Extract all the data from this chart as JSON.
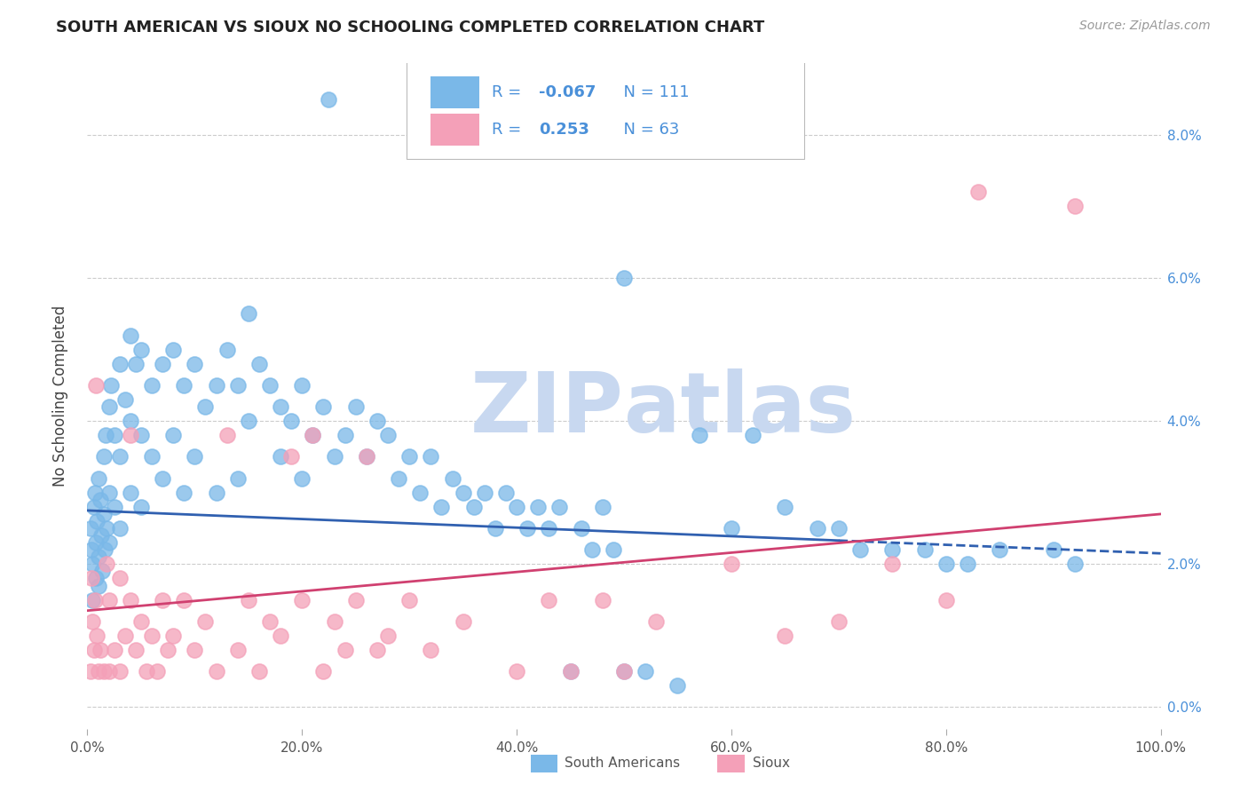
{
  "title": "SOUTH AMERICAN VS SIOUX NO SCHOOLING COMPLETED CORRELATION CHART",
  "source": "Source: ZipAtlas.com",
  "ylabel": "No Schooling Completed",
  "ytick_vals": [
    0.0,
    2.0,
    4.0,
    6.0,
    8.0
  ],
  "xtick_vals": [
    0.0,
    20.0,
    40.0,
    60.0,
    80.0,
    100.0
  ],
  "xlim": [
    0,
    100
  ],
  "ylim": [
    -0.3,
    9.0
  ],
  "blue_R": "-0.067",
  "blue_N": "111",
  "pink_R": "0.253",
  "pink_N": "63",
  "blue_marker_color": "#7ab8e8",
  "pink_marker_color": "#f4a0b8",
  "blue_line_color": "#3060b0",
  "pink_line_color": "#d04070",
  "watermark_zip": "ZIP",
  "watermark_atlas": "atlas",
  "watermark_color": "#c8d8f0",
  "legend_label_blue": "South Americans",
  "legend_label_pink": "Sioux",
  "legend_text_color": "#4a90d9",
  "blue_line_y0": 2.75,
  "blue_line_y1": 2.15,
  "blue_solid_end_x": 70,
  "pink_line_y0": 1.35,
  "pink_line_y1": 2.7,
  "blue_scatter": [
    [
      0.3,
      2.5
    ],
    [
      0.4,
      2.2
    ],
    [
      0.5,
      2.0
    ],
    [
      0.5,
      1.5
    ],
    [
      0.6,
      2.8
    ],
    [
      0.7,
      3.0
    ],
    [
      0.8,
      2.3
    ],
    [
      0.8,
      1.8
    ],
    [
      0.9,
      2.6
    ],
    [
      1.0,
      2.1
    ],
    [
      1.0,
      1.7
    ],
    [
      1.0,
      3.2
    ],
    [
      1.2,
      2.9
    ],
    [
      1.3,
      2.4
    ],
    [
      1.4,
      1.9
    ],
    [
      1.5,
      3.5
    ],
    [
      1.5,
      2.7
    ],
    [
      1.6,
      2.2
    ],
    [
      1.7,
      3.8
    ],
    [
      1.8,
      2.5
    ],
    [
      2.0,
      4.2
    ],
    [
      2.0,
      3.0
    ],
    [
      2.0,
      2.3
    ],
    [
      2.2,
      4.5
    ],
    [
      2.5,
      3.8
    ],
    [
      2.5,
      2.8
    ],
    [
      3.0,
      4.8
    ],
    [
      3.0,
      3.5
    ],
    [
      3.0,
      2.5
    ],
    [
      3.5,
      4.3
    ],
    [
      4.0,
      5.2
    ],
    [
      4.0,
      4.0
    ],
    [
      4.0,
      3.0
    ],
    [
      4.5,
      4.8
    ],
    [
      5.0,
      5.0
    ],
    [
      5.0,
      3.8
    ],
    [
      5.0,
      2.8
    ],
    [
      6.0,
      4.5
    ],
    [
      6.0,
      3.5
    ],
    [
      7.0,
      4.8
    ],
    [
      7.0,
      3.2
    ],
    [
      8.0,
      5.0
    ],
    [
      8.0,
      3.8
    ],
    [
      9.0,
      4.5
    ],
    [
      9.0,
      3.0
    ],
    [
      10.0,
      4.8
    ],
    [
      10.0,
      3.5
    ],
    [
      11.0,
      4.2
    ],
    [
      12.0,
      4.5
    ],
    [
      12.0,
      3.0
    ],
    [
      13.0,
      5.0
    ],
    [
      14.0,
      4.5
    ],
    [
      14.0,
      3.2
    ],
    [
      15.0,
      5.5
    ],
    [
      15.0,
      4.0
    ],
    [
      16.0,
      4.8
    ],
    [
      17.0,
      4.5
    ],
    [
      18.0,
      4.2
    ],
    [
      18.0,
      3.5
    ],
    [
      19.0,
      4.0
    ],
    [
      20.0,
      4.5
    ],
    [
      20.0,
      3.2
    ],
    [
      21.0,
      3.8
    ],
    [
      22.0,
      4.2
    ],
    [
      22.5,
      8.5
    ],
    [
      23.0,
      3.5
    ],
    [
      24.0,
      3.8
    ],
    [
      25.0,
      4.2
    ],
    [
      26.0,
      3.5
    ],
    [
      27.0,
      4.0
    ],
    [
      28.0,
      3.8
    ],
    [
      29.0,
      3.2
    ],
    [
      30.0,
      3.5
    ],
    [
      31.0,
      3.0
    ],
    [
      32.0,
      3.5
    ],
    [
      33.0,
      2.8
    ],
    [
      34.0,
      3.2
    ],
    [
      35.0,
      3.0
    ],
    [
      36.0,
      2.8
    ],
    [
      37.0,
      3.0
    ],
    [
      38.0,
      2.5
    ],
    [
      39.0,
      3.0
    ],
    [
      40.0,
      2.8
    ],
    [
      41.0,
      2.5
    ],
    [
      42.0,
      2.8
    ],
    [
      43.0,
      2.5
    ],
    [
      44.0,
      2.8
    ],
    [
      45.0,
      0.5
    ],
    [
      46.0,
      2.5
    ],
    [
      47.0,
      2.2
    ],
    [
      48.0,
      2.8
    ],
    [
      49.0,
      2.2
    ],
    [
      50.0,
      6.0
    ],
    [
      50.0,
      0.5
    ],
    [
      52.0,
      0.5
    ],
    [
      55.0,
      0.3
    ],
    [
      57.0,
      3.8
    ],
    [
      60.0,
      2.5
    ],
    [
      62.0,
      3.8
    ],
    [
      65.0,
      2.8
    ],
    [
      68.0,
      2.5
    ],
    [
      70.0,
      2.5
    ],
    [
      72.0,
      2.2
    ],
    [
      75.0,
      2.2
    ],
    [
      78.0,
      2.2
    ],
    [
      80.0,
      2.0
    ],
    [
      82.0,
      2.0
    ],
    [
      85.0,
      2.2
    ],
    [
      90.0,
      2.2
    ],
    [
      92.0,
      2.0
    ]
  ],
  "pink_scatter": [
    [
      0.3,
      0.5
    ],
    [
      0.4,
      1.8
    ],
    [
      0.5,
      1.2
    ],
    [
      0.6,
      0.8
    ],
    [
      0.7,
      1.5
    ],
    [
      0.8,
      4.5
    ],
    [
      0.9,
      1.0
    ],
    [
      1.0,
      0.5
    ],
    [
      1.2,
      0.8
    ],
    [
      1.5,
      0.5
    ],
    [
      1.8,
      2.0
    ],
    [
      2.0,
      1.5
    ],
    [
      2.0,
      0.5
    ],
    [
      2.5,
      0.8
    ],
    [
      3.0,
      1.8
    ],
    [
      3.0,
      0.5
    ],
    [
      3.5,
      1.0
    ],
    [
      4.0,
      1.5
    ],
    [
      4.0,
      3.8
    ],
    [
      4.5,
      0.8
    ],
    [
      5.0,
      1.2
    ],
    [
      5.5,
      0.5
    ],
    [
      6.0,
      1.0
    ],
    [
      6.5,
      0.5
    ],
    [
      7.0,
      1.5
    ],
    [
      7.5,
      0.8
    ],
    [
      8.0,
      1.0
    ],
    [
      9.0,
      1.5
    ],
    [
      10.0,
      0.8
    ],
    [
      11.0,
      1.2
    ],
    [
      12.0,
      0.5
    ],
    [
      13.0,
      3.8
    ],
    [
      14.0,
      0.8
    ],
    [
      15.0,
      1.5
    ],
    [
      16.0,
      0.5
    ],
    [
      17.0,
      1.2
    ],
    [
      18.0,
      1.0
    ],
    [
      19.0,
      3.5
    ],
    [
      20.0,
      1.5
    ],
    [
      21.0,
      3.8
    ],
    [
      22.0,
      0.5
    ],
    [
      23.0,
      1.2
    ],
    [
      24.0,
      0.8
    ],
    [
      25.0,
      1.5
    ],
    [
      26.0,
      3.5
    ],
    [
      27.0,
      0.8
    ],
    [
      28.0,
      1.0
    ],
    [
      30.0,
      1.5
    ],
    [
      32.0,
      0.8
    ],
    [
      35.0,
      1.2
    ],
    [
      40.0,
      0.5
    ],
    [
      43.0,
      1.5
    ],
    [
      45.0,
      0.5
    ],
    [
      48.0,
      1.5
    ],
    [
      50.0,
      0.5
    ],
    [
      53.0,
      1.2
    ],
    [
      60.0,
      2.0
    ],
    [
      65.0,
      1.0
    ],
    [
      70.0,
      1.2
    ],
    [
      75.0,
      2.0
    ],
    [
      80.0,
      1.5
    ],
    [
      83.0,
      7.2
    ],
    [
      92.0,
      7.0
    ]
  ]
}
